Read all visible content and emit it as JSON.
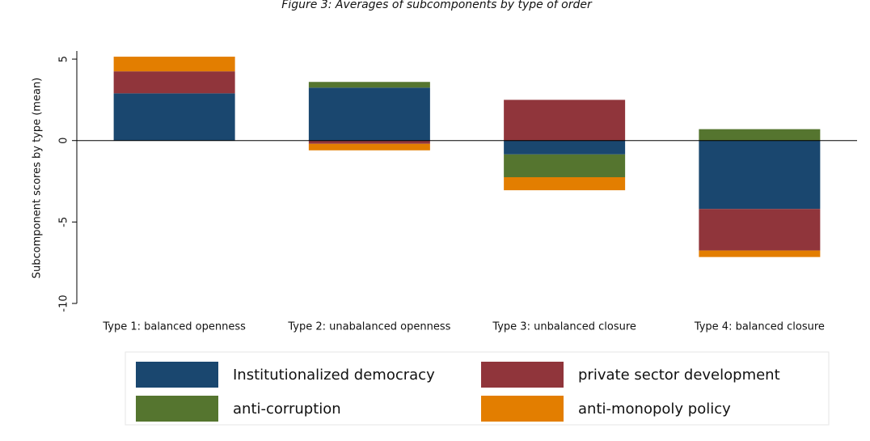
{
  "chart_data": {
    "type": "stacked-bar",
    "title": "Figure 3: Averages of subcomponents by type of order",
    "y_label": "Subcomponent scores by type (mean)",
    "categories": [
      "Type 1: balanced openness",
      "Type 2: unabalanced openness",
      "Type 3: unbalanced closure",
      "Type 4: balanced closure"
    ],
    "series": [
      {
        "name": "Institutionalized democracy",
        "color": "#1a476f",
        "values": [
          2.9,
          3.25,
          -0.85,
          -4.2
        ]
      },
      {
        "name": "private sector development",
        "color": "#90353b",
        "values": [
          1.35,
          -0.2,
          2.5,
          -2.55
        ]
      },
      {
        "name": "anti-corruption",
        "color": "#55752f",
        "values": [
          0,
          0.35,
          -1.4,
          0.7
        ]
      },
      {
        "name": "anti-monopoly policy",
        "color": "#e37e00",
        "values": [
          0.9,
          -0.4,
          -0.8,
          -0.4
        ]
      }
    ],
    "ylim": [
      -10,
      5.5
    ],
    "yticks": [
      -10,
      -5,
      0,
      5
    ]
  }
}
